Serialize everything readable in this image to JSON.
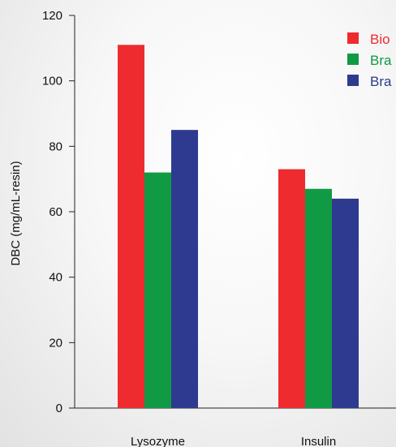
{
  "chart_data": {
    "type": "bar",
    "title": "",
    "xlabel": "",
    "ylabel": "DBC (mg/mL-resin)",
    "ylim": [
      0,
      120
    ],
    "yticks": [
      0,
      20,
      40,
      60,
      80,
      100,
      120
    ],
    "categories": [
      "Lysozyme",
      "Insulin"
    ],
    "series": [
      {
        "name": "Bio",
        "color": "#ee2b2e",
        "values": [
          111,
          73
        ]
      },
      {
        "name": "Bra",
        "color": "#109a44",
        "values": [
          72,
          67
        ]
      },
      {
        "name": "Bra",
        "color": "#2e3a8f",
        "values": [
          85,
          64
        ]
      }
    ],
    "legend_position": "top-right",
    "grid": false
  }
}
